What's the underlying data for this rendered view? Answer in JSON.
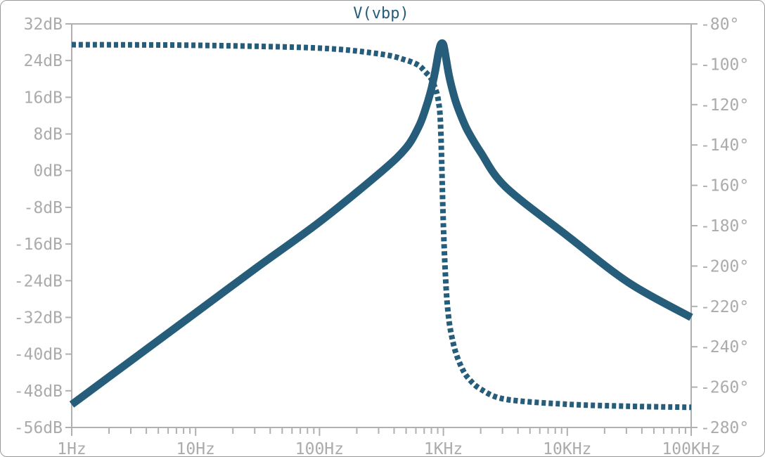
{
  "chart_data": {
    "type": "line",
    "title": "V(vbp)",
    "x_scale": "log",
    "x_range_hz": [
      1,
      100000
    ],
    "x_ticks": [
      {
        "value": 1,
        "label": "1Hz"
      },
      {
        "value": 10,
        "label": "10Hz"
      },
      {
        "value": 100,
        "label": "100Hz"
      },
      {
        "value": 1000,
        "label": "1KHz"
      },
      {
        "value": 10000,
        "label": "10KHz"
      },
      {
        "value": 100000,
        "label": "100KHz"
      }
    ],
    "y_left_range_db": [
      -56,
      32
    ],
    "y_left_ticks": [
      {
        "value": 32,
        "label": "32dB"
      },
      {
        "value": 24,
        "label": "24dB"
      },
      {
        "value": 16,
        "label": "16dB"
      },
      {
        "value": 8,
        "label": "8dB"
      },
      {
        "value": 0,
        "label": "0dB"
      },
      {
        "value": -8,
        "label": "-8dB"
      },
      {
        "value": -16,
        "label": "-16dB"
      },
      {
        "value": -24,
        "label": "-24dB"
      },
      {
        "value": -32,
        "label": "-32dB"
      },
      {
        "value": -40,
        "label": "-40dB"
      },
      {
        "value": -48,
        "label": "-48dB"
      },
      {
        "value": -56,
        "label": "-56dB"
      }
    ],
    "y_right_range_deg": [
      -280,
      -80
    ],
    "y_right_ticks": [
      {
        "value": -80,
        "label": "-80°"
      },
      {
        "value": -100,
        "label": "-100°"
      },
      {
        "value": -120,
        "label": "-120°"
      },
      {
        "value": -140,
        "label": "-140°"
      },
      {
        "value": -160,
        "label": "-160°"
      },
      {
        "value": -180,
        "label": "-180°"
      },
      {
        "value": -200,
        "label": "-200°"
      },
      {
        "value": -220,
        "label": "-220°"
      },
      {
        "value": -240,
        "label": "-240°"
      },
      {
        "value": -260,
        "label": "-260°"
      },
      {
        "value": -280,
        "label": "-280°"
      }
    ],
    "grid": false,
    "series": [
      {
        "quantity": "magnitude",
        "axis": "left",
        "style": "solid",
        "x": [
          1,
          3.162,
          10,
          31.62,
          100,
          316.2,
          501,
          630,
          708,
          794,
          860,
          910,
          950,
          1000,
          1050,
          1100,
          1160,
          1260,
          1410,
          1585,
          2000,
          3162,
          10000,
          31620,
          100000
        ],
        "y": [
          -51,
          -41,
          -31,
          -21,
          -11.2,
          -0.2,
          5,
          9.5,
          13,
          17.5,
          21.8,
          25.5,
          27.5,
          27.5,
          24.5,
          21.3,
          18.5,
          15,
          11.5,
          8.5,
          4,
          -3.5,
          -14.2,
          -24.5,
          -32
        ]
      },
      {
        "quantity": "phase",
        "axis": "right",
        "style": "dotted",
        "x": [
          1,
          10,
          100,
          316,
          501,
          630,
          708,
          794,
          860,
          910,
          950,
          1000,
          1050,
          1100,
          1160,
          1260,
          1410,
          1585,
          2000,
          3162,
          10000,
          31620,
          100000
        ],
        "y": [
          -90.3,
          -90.6,
          -92,
          -95,
          -98,
          -100.5,
          -103.5,
          -107,
          -112,
          -118,
          -131,
          -180,
          -210,
          -225,
          -234,
          -243,
          -250.5,
          -255.5,
          -261,
          -266,
          -268.5,
          -269.5,
          -270
        ]
      }
    ]
  },
  "colors": {
    "trace": "#265d7a",
    "axis": "#b0b0b0",
    "tick_label": "#ababab",
    "title": "#265d7a",
    "frame": "#9a9a9a"
  }
}
